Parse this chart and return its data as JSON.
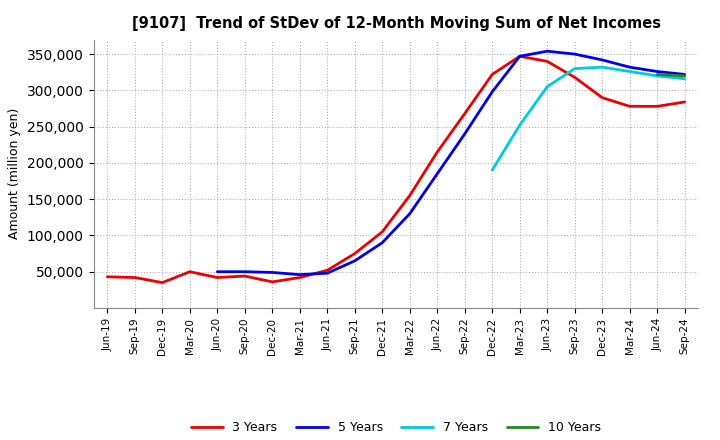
{
  "title": "[9107]  Trend of StDev of 12-Month Moving Sum of Net Incomes",
  "ylabel": "Amount (million yen)",
  "background_color": "#ffffff",
  "grid_color": "#999999",
  "x_labels": [
    "Jun-19",
    "Sep-19",
    "Dec-19",
    "Mar-20",
    "Jun-20",
    "Sep-20",
    "Dec-20",
    "Mar-21",
    "Jun-21",
    "Sep-21",
    "Dec-21",
    "Mar-22",
    "Jun-22",
    "Sep-22",
    "Dec-22",
    "Mar-23",
    "Jun-23",
    "Sep-23",
    "Dec-23",
    "Mar-24",
    "Jun-24",
    "Sep-24"
  ],
  "ylim": [
    0,
    370000
  ],
  "yticks": [
    50000,
    100000,
    150000,
    200000,
    250000,
    300000,
    350000
  ],
  "series": {
    "3 Years": {
      "color": "#ee0000",
      "values": [
        43000,
        42000,
        35000,
        50000,
        42000,
        44000,
        36000,
        42000,
        52000,
        75000,
        105000,
        155000,
        215000,
        268000,
        322000,
        347000,
        340000,
        318000,
        290000,
        278000,
        278000,
        284000
      ]
    },
    "5 Years": {
      "color": "#0000ee",
      "values": [
        null,
        null,
        null,
        null,
        50000,
        50000,
        49000,
        46000,
        48000,
        65000,
        90000,
        130000,
        185000,
        240000,
        298000,
        347000,
        354000,
        350000,
        342000,
        332000,
        326000,
        322000
      ]
    },
    "7 Years": {
      "color": "#00ccdd",
      "values": [
        null,
        null,
        null,
        null,
        null,
        null,
        null,
        null,
        null,
        null,
        null,
        null,
        null,
        null,
        190000,
        252000,
        305000,
        330000,
        332000,
        326000,
        320000,
        316000
      ]
    },
    "10 Years": {
      "color": "#228822",
      "values": [
        null,
        null,
        null,
        null,
        null,
        null,
        null,
        null,
        null,
        null,
        null,
        null,
        null,
        null,
        null,
        null,
        null,
        null,
        null,
        null,
        322000,
        320000
      ]
    }
  },
  "legend_order": [
    "3 Years",
    "5 Years",
    "7 Years",
    "10 Years"
  ]
}
